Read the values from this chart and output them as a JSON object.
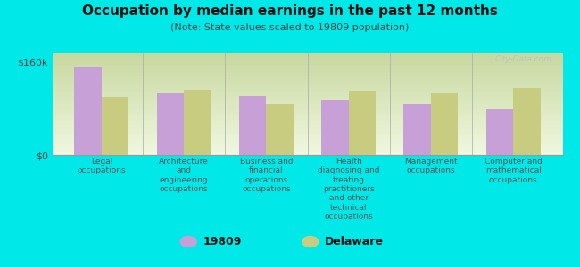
{
  "title": "Occupation by median earnings in the past 12 months",
  "subtitle": "(Note: State values scaled to 19809 population)",
  "background_color": "#00e8e8",
  "plot_bg_top": "#e8f0d8",
  "plot_bg_bottom": "#f0f8e8",
  "categories": [
    "Legal\noccupations",
    "Architecture\nand\nengineering\noccupations",
    "Business and\nfinancial\noperations\noccupations",
    "Health\ndiagnosing and\ntreating\npractitioners\nand other\ntechnical\noccupations",
    "Management\noccupations",
    "Computer and\nmathematical\noccupations"
  ],
  "values_19809": [
    152000,
    108000,
    102000,
    95000,
    88000,
    80000
  ],
  "values_delaware": [
    100000,
    112000,
    88000,
    110000,
    108000,
    115000
  ],
  "color_19809": "#c8a0d8",
  "color_delaware": "#c8cc80",
  "ylim": [
    0,
    175000
  ],
  "yticks": [
    0,
    160000
  ],
  "ytick_labels": [
    "$0",
    "$160k"
  ],
  "legend_label_1": "19809",
  "legend_label_2": "Delaware",
  "bar_width": 0.33,
  "watermark": "City-Data.com"
}
